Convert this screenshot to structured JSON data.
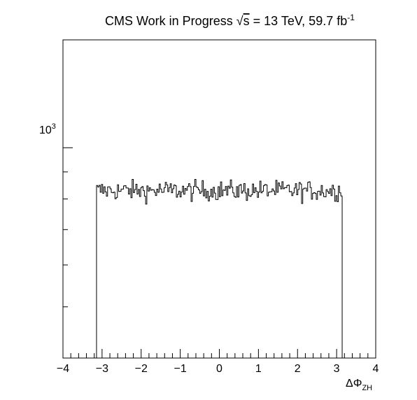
{
  "title": {
    "prefix": "CMS Work in Progress ",
    "sqrt_s": "s",
    "energy": " = 13 TeV, 59.7 fb",
    "lumi_sup": "-1"
  },
  "axes": {
    "x_label": "ΔΦ",
    "x_label_sub": "ZH",
    "x_tick_labels": [
      "−4",
      "−3",
      "−2",
      "−1",
      "0",
      "1",
      "2",
      "3",
      "4"
    ],
    "y_tick_label_base": "10",
    "y_tick_label_exp": "3"
  },
  "chart_data": {
    "type": "histogram",
    "x_range": [
      -4,
      4
    ],
    "y_log": true,
    "y_range": [
      400,
      1600
    ],
    "grid": false,
    "legend": "none",
    "bin_width": 0.0314,
    "support": [
      -3.1416,
      3.1416
    ],
    "plateau_mean": 830,
    "plateau_fluctuation": 18,
    "nbins": 200,
    "line_color": "#000000"
  }
}
